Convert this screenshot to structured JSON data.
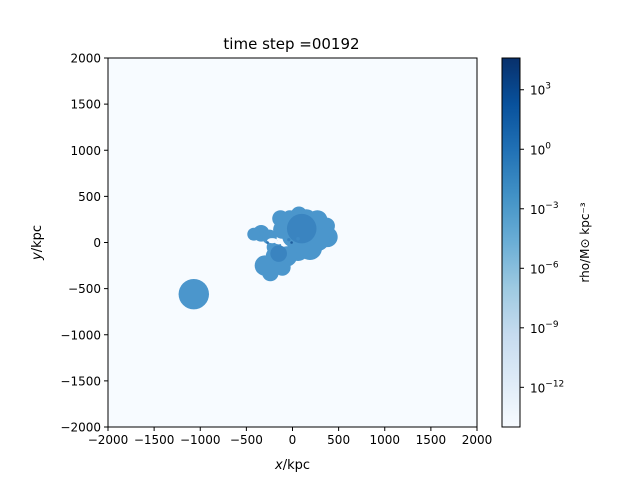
{
  "chart_data": {
    "type": "heatmap",
    "title": "time step =00192",
    "xlabel_italic": "x",
    "xlabel_rest": "/kpc",
    "ylabel_italic": "y",
    "ylabel_rest": "/kpc",
    "xlim": [
      -2000,
      2000
    ],
    "ylim": [
      -2000,
      2000
    ],
    "xticks": [
      -2000,
      -1500,
      -1000,
      -500,
      0,
      500,
      1000,
      1500,
      2000
    ],
    "yticks": [
      -2000,
      -1500,
      -1000,
      -500,
      0,
      500,
      1000,
      1500,
      2000
    ],
    "colormap": "Blues",
    "background_color": "#f7fbff",
    "colorbar": {
      "scale": "log",
      "log_range": [
        -14,
        4.6
      ],
      "label": "rho/M⊙ kpc⁻³",
      "ticks": [
        {
          "base": "10",
          "exp": "3",
          "value": 1000
        },
        {
          "base": "10",
          "exp": "0",
          "value": 1
        },
        {
          "base": "10",
          "exp": "−3",
          "value": 0.001
        },
        {
          "base": "10",
          "exp": "−6",
          "value": 1e-06
        },
        {
          "base": "10",
          "exp": "−9",
          "value": 1e-09
        },
        {
          "base": "10",
          "exp": "−12",
          "value": 1e-12
        }
      ]
    },
    "features": [
      {
        "name": "main gas cloud",
        "color": "#4b96cc",
        "blobs": [
          [
            -340,
            100,
            90
          ],
          [
            -420,
            90,
            70
          ],
          [
            -250,
            60,
            80
          ],
          [
            -130,
            260,
            90
          ],
          [
            -30,
            270,
            80
          ],
          [
            70,
            300,
            90
          ],
          [
            150,
            250,
            110
          ],
          [
            270,
            240,
            110
          ],
          [
            370,
            180,
            90
          ],
          [
            380,
            60,
            110
          ],
          [
            280,
            30,
            120
          ],
          [
            190,
            -60,
            130
          ],
          [
            60,
            -80,
            120
          ],
          [
            -60,
            -150,
            110
          ],
          [
            -180,
            -150,
            110
          ],
          [
            -300,
            -250,
            110
          ],
          [
            -240,
            -330,
            90
          ],
          [
            -110,
            -270,
            90
          ],
          [
            0,
            60,
            110
          ],
          [
            -110,
            140,
            100
          ],
          [
            120,
            100,
            120
          ],
          [
            -200,
            -50,
            80
          ]
        ]
      },
      {
        "name": "satellite cloud",
        "color": "#4b96cc",
        "blobs": [
          [
            -1070,
            -560,
            165
          ]
        ]
      },
      {
        "name": "dense core",
        "color": "#3a84c0",
        "blobs": [
          [
            100,
            150,
            160
          ],
          [
            -150,
            -120,
            90
          ]
        ]
      }
    ],
    "holes": [
      [
        -220,
        20,
        55
      ],
      [
        -150,
        0,
        40
      ]
    ],
    "dark_spots": [
      {
        "x": -10,
        "y": 0,
        "r": 14,
        "color": "#1f5f9f"
      },
      {
        "x": -270,
        "y": 0,
        "r": 14,
        "color": "#2a70b0"
      },
      {
        "x": 60,
        "y": 40,
        "r": 20,
        "color": "#3f8ac5"
      },
      {
        "x": -40,
        "y": 30,
        "r": 18,
        "color": "#3883c0"
      }
    ]
  }
}
